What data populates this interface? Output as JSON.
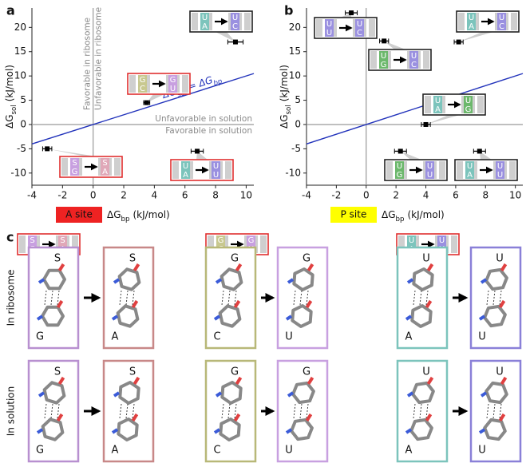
{
  "chart_data": [
    {
      "type": "scatter",
      "label": "a",
      "x": [
        -3,
        3.5,
        6.8,
        9.3
      ],
      "values": [
        -5,
        4.5,
        -5.5,
        17
      ],
      "xerr": [
        0.3,
        0.2,
        0.4,
        0.5
      ],
      "xlim": [
        -4,
        10.5
      ],
      "ylim": [
        -12.5,
        24
      ],
      "xticks": [
        -4,
        -2,
        0,
        2,
        4,
        6,
        8,
        10
      ],
      "yticks": [
        -10,
        -5,
        0,
        5,
        10,
        15,
        20
      ],
      "xlabel": {
        "symbol": "ΔG",
        "sub": "bp",
        "unit": "(kJ/mol)"
      },
      "ylabel": {
        "symbol": "ΔG",
        "sub": "sol",
        "unit": "(kJ/mol)"
      },
      "site": {
        "label": "A site",
        "color": "#ee2222"
      },
      "identity_line": {
        "color": "#2233bb",
        "label": {
          "left": "ΔG",
          "left_sub": "sol",
          "eq": "=",
          "right": "ΔG",
          "right_sub": "bp"
        }
      },
      "quadrant_labels": {
        "favorable_ribosome": "Favorable in ribosome",
        "unfavorable_ribosome": "Unfavorable in ribosome",
        "unfavorable_solution": "Unfavorable in solution",
        "favorable_solution": "Favorable in solution"
      },
      "insets": [
        {
          "from": [
            "S",
            "G"
          ],
          "from_color": "#c8a0e0",
          "to": [
            "S",
            "A"
          ],
          "to_color": "#e0a8b8",
          "border": "#e03030"
        },
        {
          "from": [
            "G",
            "C"
          ],
          "from_color": "#c8c890",
          "to": [
            "G",
            "U"
          ],
          "to_color": "#c8a0e0",
          "border": "#e03030"
        },
        {
          "from": [
            "U",
            "A"
          ],
          "from_color": "#7cc4bc",
          "to": [
            "U",
            "U"
          ],
          "to_color": "#9a90e0",
          "border": "#e03030"
        },
        {
          "from": [
            "U",
            "A"
          ],
          "from_color": "#7cc4bc",
          "to": [
            "U",
            "C"
          ],
          "to_color": "#9a90e0",
          "border": "#222222"
        }
      ]
    },
    {
      "type": "scatter",
      "label": "b",
      "x": [
        -1,
        1.2,
        6.2,
        4,
        2.3,
        7.6
      ],
      "values": [
        23,
        17.2,
        17,
        0,
        -5.5,
        -5.5
      ],
      "xerr": [
        0.4,
        0.3,
        0.3,
        0.3,
        0.4,
        0.4
      ],
      "xlim": [
        -4,
        10.5
      ],
      "ylim": [
        -12.5,
        24
      ],
      "xticks": [
        -4,
        -2,
        0,
        2,
        4,
        6,
        8,
        10
      ],
      "yticks": [
        -10,
        -5,
        0,
        5,
        10,
        15,
        20
      ],
      "xlabel": {
        "symbol": "ΔG",
        "sub": "bp",
        "unit": "(kJ/mol)"
      },
      "ylabel": {
        "symbol": "ΔG",
        "sub": "sol",
        "unit": "(kJ/mol)"
      },
      "site": {
        "label": "P site",
        "color": "#ffff00"
      },
      "identity_line": {
        "color": "#2233bb"
      },
      "insets": [
        {
          "from": [
            "U",
            "U"
          ],
          "from_color": "#9a90e0",
          "to": [
            "U",
            "C"
          ],
          "to_color": "#9a90e0",
          "border": "#222222"
        },
        {
          "from": [
            "U",
            "G"
          ],
          "from_color": "#6cb86c",
          "to": [
            "U",
            "C"
          ],
          "to_color": "#9a90e0",
          "border": "#222222"
        },
        {
          "from": [
            "U",
            "A"
          ],
          "from_color": "#7cc4bc",
          "to": [
            "U",
            "C"
          ],
          "to_color": "#9a90e0",
          "border": "#222222"
        },
        {
          "from": [
            "U",
            "A"
          ],
          "from_color": "#7cc4bc",
          "to": [
            "U",
            "G"
          ],
          "to_color": "#6cb86c",
          "border": "#222222"
        },
        {
          "from": [
            "U",
            "G"
          ],
          "from_color": "#6cb86c",
          "to": [
            "U",
            "U"
          ],
          "to_color": "#9a90e0",
          "border": "#222222"
        },
        {
          "from": [
            "U",
            "A"
          ],
          "from_color": "#7cc4bc",
          "to": [
            "U",
            "U"
          ],
          "to_color": "#9a90e0",
          "border": "#222222"
        }
      ]
    }
  ],
  "panel_c": {
    "label": "c",
    "rows": [
      "In ribosome",
      "In solution"
    ],
    "groups": [
      {
        "inset": {
          "from": [
            "S",
            "G"
          ],
          "from_color": "#c8a0e0",
          "to": [
            "S",
            "A"
          ],
          "to_color": "#e0a8b8",
          "border": "#e03030"
        },
        "box_colors": [
          "#b890d0",
          "#c88888"
        ],
        "ribosome": [
          [
            "S",
            "G"
          ],
          [
            "S",
            "A"
          ]
        ],
        "solution": [
          [
            "S",
            "G"
          ],
          [
            "S",
            "A"
          ]
        ]
      },
      {
        "inset": {
          "from": [
            "G",
            "C"
          ],
          "from_color": "#c8c890",
          "to": [
            "G",
            "U"
          ],
          "to_color": "#c8a0e0",
          "border": "#e03030"
        },
        "box_colors": [
          "#b8b878",
          "#c8a0e0"
        ],
        "ribosome": [
          [
            "G",
            "C"
          ],
          [
            "G",
            "U"
          ]
        ],
        "solution": [
          [
            "G",
            "C"
          ],
          [
            "G",
            "U"
          ]
        ]
      },
      {
        "inset": {
          "from": [
            "U",
            "A"
          ],
          "from_color": "#7cc4bc",
          "to": [
            "U",
            "U"
          ],
          "to_color": "#9a90e0",
          "border": "#e03030"
        },
        "box_colors": [
          "#7cc4bc",
          "#8a80d8"
        ],
        "ribosome": [
          [
            "U",
            "A"
          ],
          [
            "U",
            "U"
          ]
        ],
        "solution": [
          [
            "U",
            "A"
          ],
          [
            "U",
            "U"
          ]
        ]
      }
    ]
  }
}
